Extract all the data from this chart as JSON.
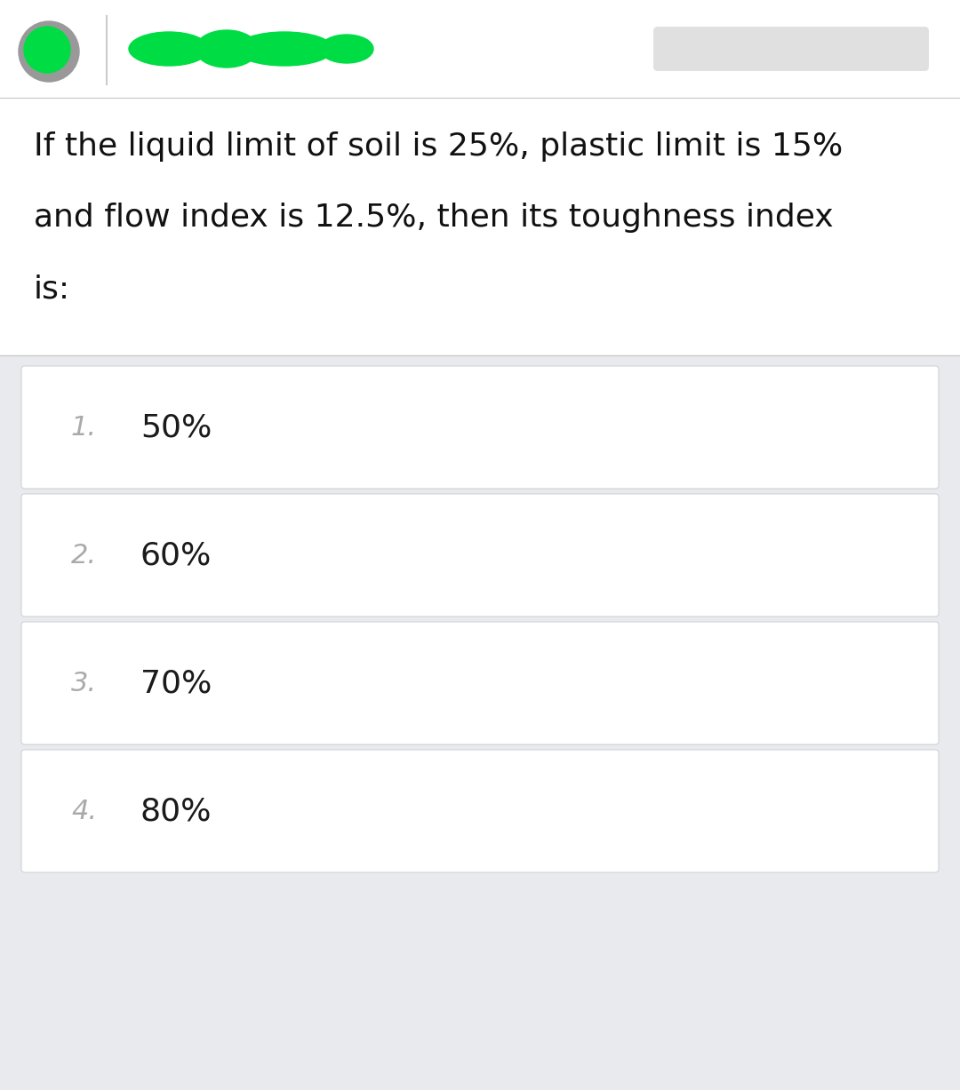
{
  "question_text_line1": "If the liquid limit of soil is 25%, plastic limit is 15%",
  "question_text_line2": "and flow index is 12.5%, then its toughness index",
  "question_text_line3": "is:",
  "options": [
    {
      "number": "1.",
      "text": "50%"
    },
    {
      "number": "2.",
      "text": "60%"
    },
    {
      "number": "3.",
      "text": "70%"
    },
    {
      "number": "4.",
      "text": "80%"
    }
  ],
  "bg_color": "#e8eaed",
  "white_top_color": "#ffffff",
  "card_color": "#ffffff",
  "card_border_color": "#d0d3d8",
  "question_text_color": "#111111",
  "number_color": "#aaaaaa",
  "answer_text_color": "#1a1a1a",
  "question_font_size": 26,
  "option_number_font_size": 22,
  "option_text_font_size": 26,
  "header_green_color": "#00dd44",
  "header_gray_color": "#999999",
  "pill_color": "#e0e0e0",
  "divider_color": "#cccccc",
  "separator_color": "#c8c8cc"
}
